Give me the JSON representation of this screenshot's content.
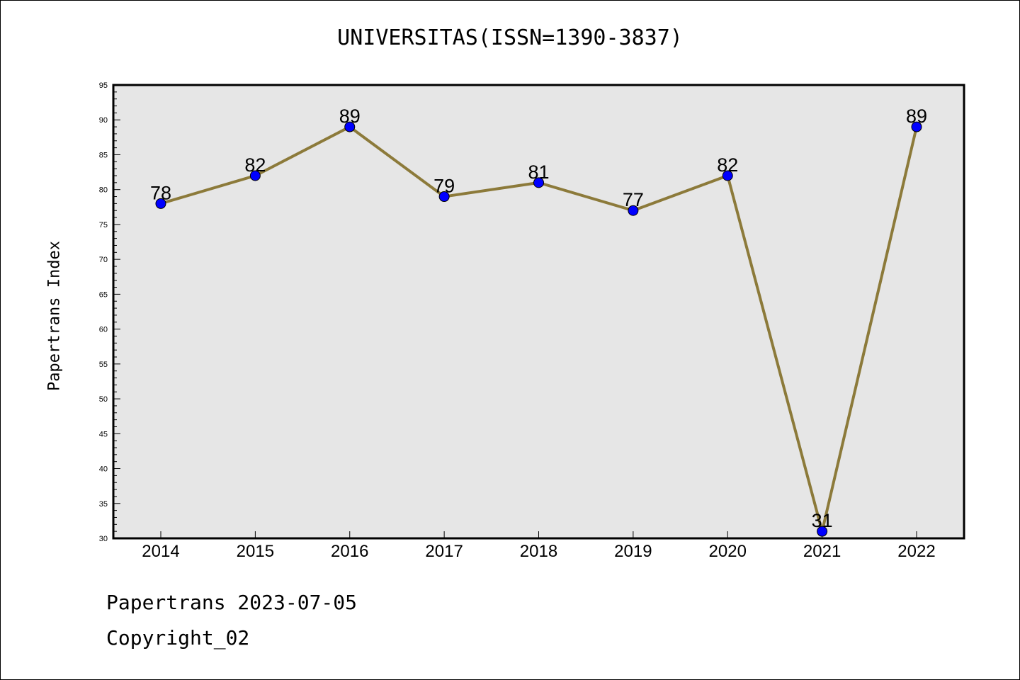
{
  "chart_data": {
    "type": "line",
    "title": "UNIVERSITAS(ISSN=1390-3837)",
    "xlabel": "",
    "ylabel": "Papertrans Index",
    "categories": [
      "2014",
      "2015",
      "2016",
      "2017",
      "2018",
      "2019",
      "2020",
      "2021",
      "2022"
    ],
    "series": [
      {
        "values": [
          78,
          82,
          89,
          79,
          81,
          77,
          82,
          31,
          89
        ]
      }
    ],
    "ylim": [
      30,
      95
    ],
    "yticks": [
      30,
      35,
      40,
      45,
      50,
      55,
      60,
      65,
      70,
      75,
      80,
      85,
      90,
      95
    ],
    "data_labels": true,
    "grid": false,
    "colors": {
      "line": "#8c7a3a",
      "marker": "#0000ff",
      "plot_background": "#e6e6e6"
    }
  },
  "footer": {
    "line1": "Papertrans 2023-07-05",
    "line2": "Copyright_02"
  }
}
